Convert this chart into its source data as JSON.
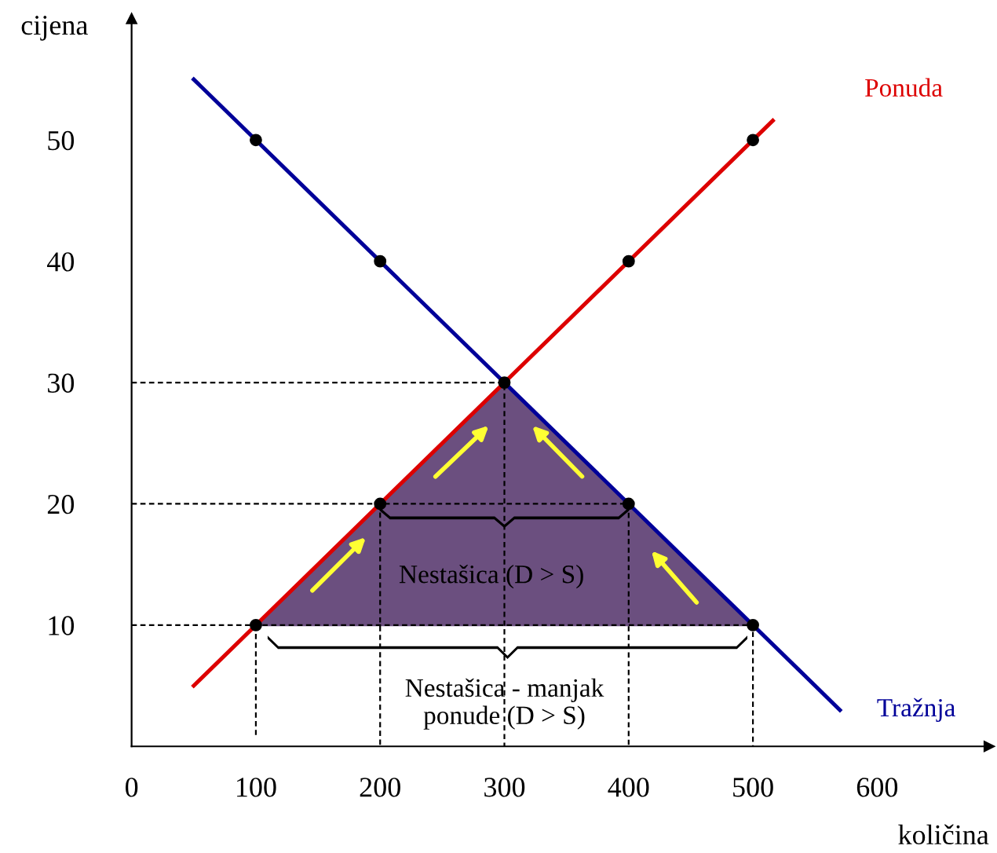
{
  "chart_data": {
    "type": "line",
    "xlabel": "količina",
    "ylabel": "cijena",
    "xlim": [
      0,
      690
    ],
    "ylim": [
      0,
      60
    ],
    "xticks": [
      0,
      100,
      200,
      300,
      400,
      500,
      600
    ],
    "yticks": [
      10,
      20,
      30,
      40,
      50
    ],
    "grid": false,
    "legend": false,
    "marker": "none",
    "line_style": "solid",
    "series": [
      {
        "type": "area",
        "color": "#6b4f7f",
        "x": [
          100,
          300,
          500
        ],
        "values": [
          10,
          30,
          10
        ]
      },
      {
        "name": "Ponuda",
        "color": "#dd0000",
        "x": [
          50,
          516
        ],
        "values": [
          5,
          51.6
        ]
      },
      {
        "name": "Tražnja",
        "color": "#000099",
        "x": [
          50,
          570
        ],
        "values": [
          55,
          3
        ]
      },
      {
        "color": "#000000",
        "line_style": "dashed",
        "x": [
          0,
          300,
          300
        ],
        "values": [
          30,
          30,
          0
        ]
      },
      {
        "color": "#000000",
        "line_style": "dashed",
        "x": [
          0,
          400,
          400
        ],
        "values": [
          20,
          20,
          0
        ]
      },
      {
        "color": "#000000",
        "line_style": "dashed",
        "x": [
          0,
          500,
          500
        ],
        "values": [
          10,
          10,
          0
        ]
      },
      {
        "color": "#000000",
        "line_style": "dashed",
        "x": [
          100,
          100
        ],
        "values": [
          10,
          0.8
        ]
      },
      {
        "color": "#000000",
        "line_style": "dashed",
        "x": [
          200,
          200
        ],
        "values": [
          20,
          0
        ]
      },
      {
        "type": "scatter",
        "color": "#000000",
        "marker": "circle",
        "x": [
          100,
          200,
          300,
          400,
          500,
          100,
          200,
          400,
          500
        ],
        "values": [
          10,
          20,
          30,
          40,
          50,
          50,
          40,
          20,
          10
        ]
      }
    ],
    "annotations": [
      "Nestašica (D > S)",
      "Nestašica - manjak ponude (D > S)"
    ]
  }
}
